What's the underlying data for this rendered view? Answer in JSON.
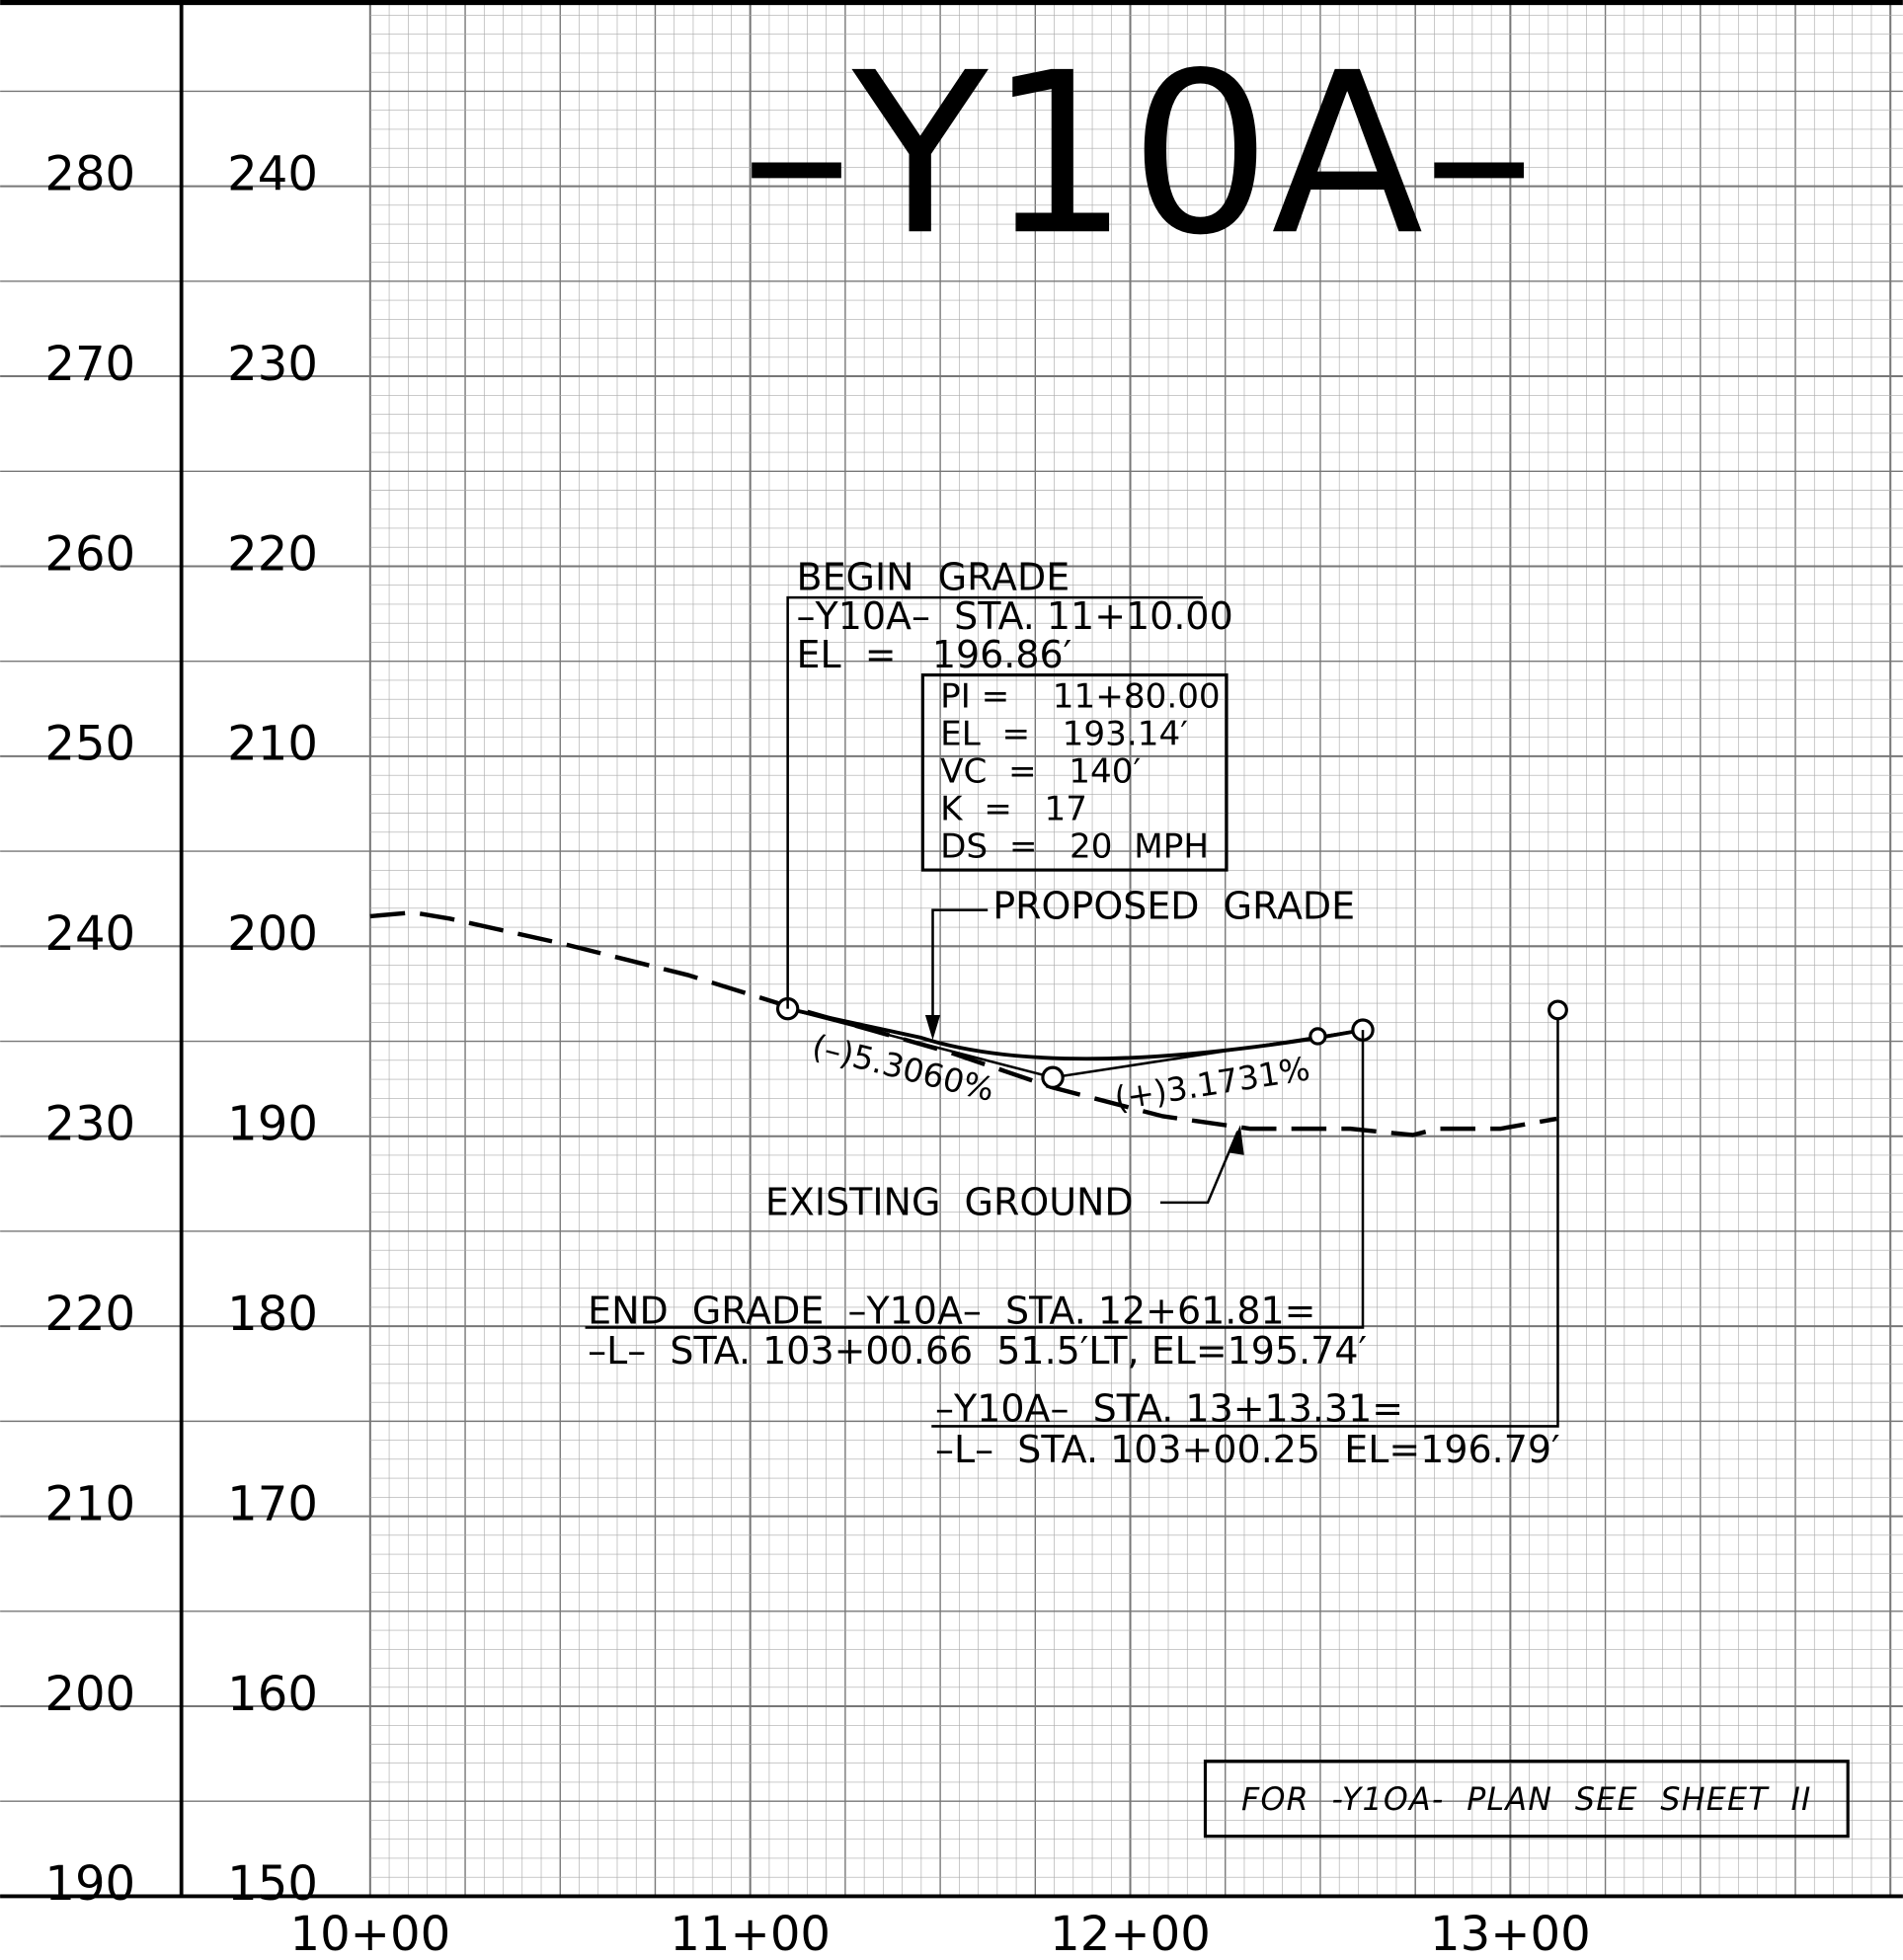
{
  "title": "–Y10A–",
  "left_axis_outer": [
    280,
    270,
    260,
    250,
    240,
    230,
    220,
    210,
    200,
    190
  ],
  "left_axis_inner": [
    240,
    230,
    220,
    210,
    200,
    190,
    180,
    170,
    160,
    150
  ],
  "stations": [
    "10+00",
    "11+00",
    "12+00",
    "13+00"
  ],
  "begin_grade": [
    "BEGIN  GRADE",
    "–Y10A–  STA. 11+10.00",
    "EL  =   196.86′"
  ],
  "pi_box": [
    "PI =    11+80.00",
    "EL  =   193.14′",
    "VC  =   140′",
    "K  =   17",
    "DS  =   20  MPH"
  ],
  "proposed_grade": "PROPOSED  GRADE",
  "grade_in": "(–)5.3060%",
  "grade_out": "(+)3.1731%",
  "existing_ground": "EXISTING  GROUND",
  "end_grade": [
    "END  GRADE  –Y10A–  STA. 12+61.81=",
    "–L–  STA. 103+00.66  51.5′LT, EL=195.74′"
  ],
  "tie": [
    "–Y10A–  STA. 13+13.31=",
    "–L–  STA. 103+00.25  EL=196.79′"
  ],
  "note": "FOR  -Y1OA-  PLAN  SEE  SHEET  II"
}
